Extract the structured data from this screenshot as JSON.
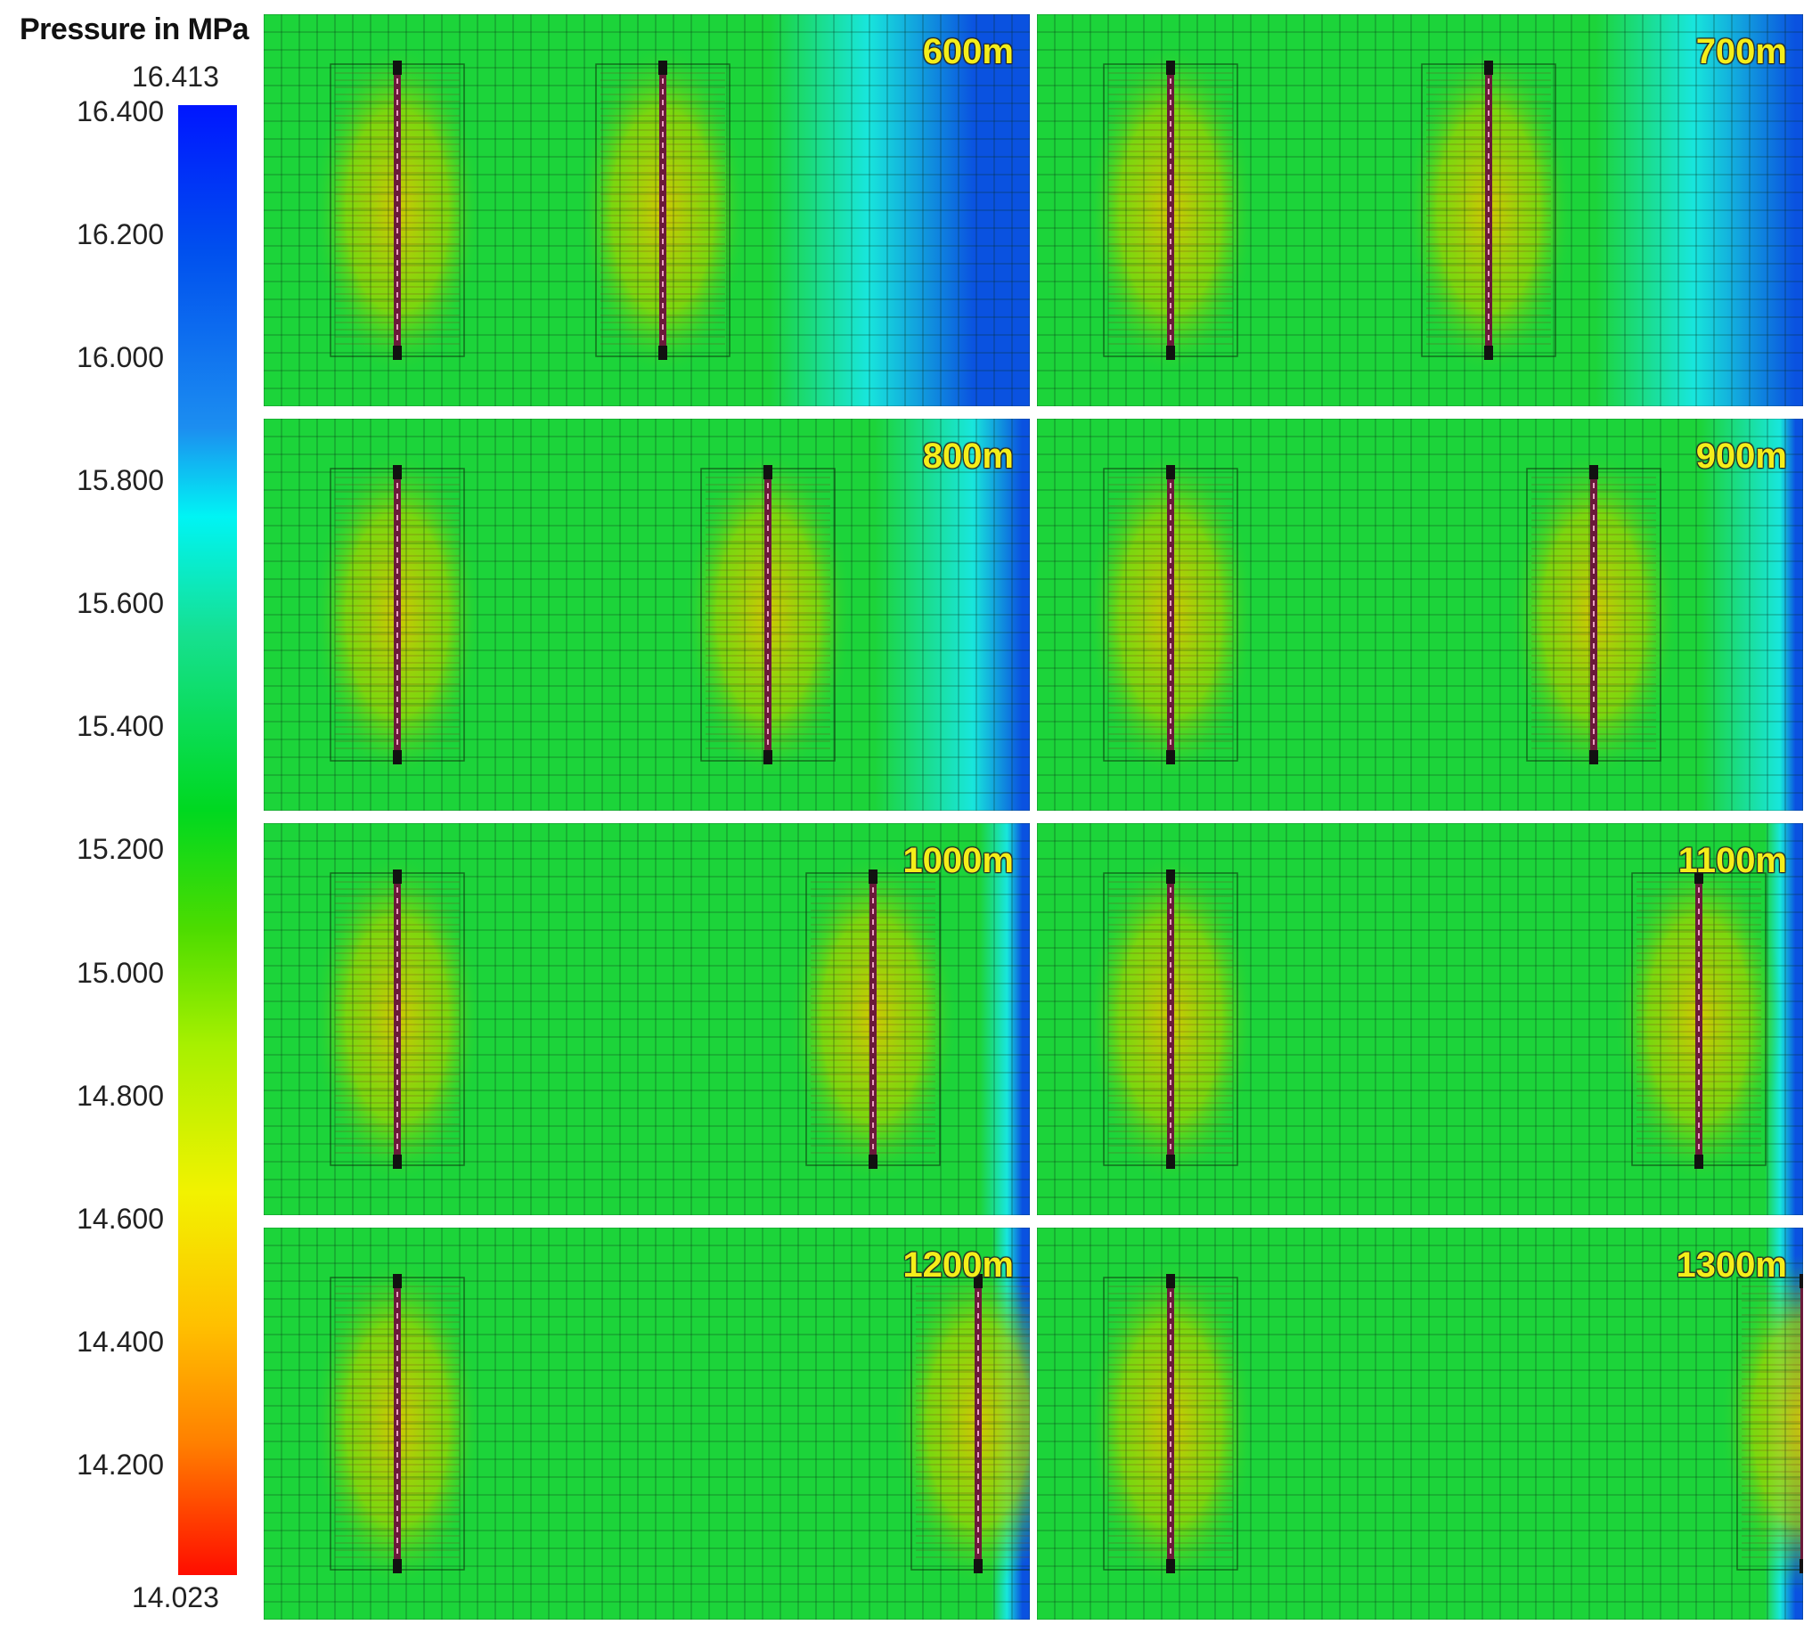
{
  "legend": {
    "title": "Pressure in MPa",
    "max_label": "16.413",
    "min_label": "14.023",
    "max_value": 16.413,
    "min_value": 14.023,
    "ticks": [
      "16.400",
      "16.200",
      "16.000",
      "15.800",
      "15.600",
      "15.400",
      "15.200",
      "15.000",
      "14.800",
      "14.600",
      "14.400",
      "14.200"
    ],
    "colors": {
      "high": "#0016ff",
      "cyan": "#00f4f4",
      "green": "#00d820",
      "yellow": "#f2f200",
      "low": "#ff0d00"
    }
  },
  "panels": [
    {
      "label": "600m",
      "spacing_m": 600
    },
    {
      "label": "700m",
      "spacing_m": 700
    },
    {
      "label": "800m",
      "spacing_m": 800
    },
    {
      "label": "900m",
      "spacing_m": 900
    },
    {
      "label": "1000m",
      "spacing_m": 1000
    },
    {
      "label": "1100m",
      "spacing_m": 1100
    },
    {
      "label": "1200m",
      "spacing_m": 1200
    },
    {
      "label": "1300m",
      "spacing_m": 1300
    }
  ],
  "colors": {
    "field_blue": "#0a52e0",
    "field_cyan": "#18e6dc",
    "field_green": "#1cd43a",
    "well_core": "#d8c800",
    "well_line": "#6a1a3a",
    "mesh": "#0a2a18",
    "label_yellow": "#f4ee1a"
  }
}
